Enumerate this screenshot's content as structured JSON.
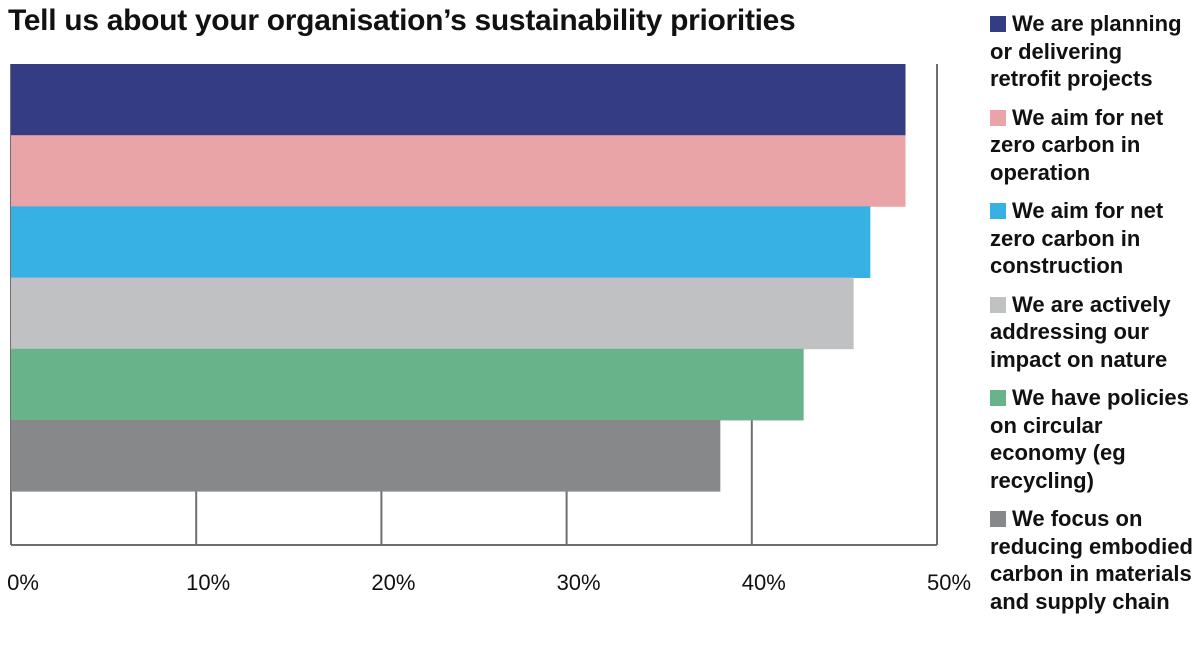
{
  "title": "Tell us about your organisation’s sustainability priorities",
  "chart_data": {
    "type": "bar",
    "orientation": "horizontal",
    "title": "Tell us about your organisation’s sustainability priorities",
    "xlabel": "",
    "ylabel": "",
    "xlim": [
      0,
      50
    ],
    "x_ticks": [
      0,
      10,
      20,
      30,
      40,
      50
    ],
    "x_tick_labels": [
      "0%",
      "10%",
      "20%",
      "30%",
      "40%",
      "50%"
    ],
    "grid": "vertical lines at ticks",
    "legend_position": "right",
    "categories": [
      "We are planning or delivering retrofit projects",
      "We aim for net zero carbon in operation",
      "We aim for net zero carbon in construction",
      "We are actively addressing our impact on nature",
      "We have policies on circular economy (eg recycling)",
      "We focus on reducing embodied carbon in materials and supply chain"
    ],
    "values": [
      48.3,
      48.3,
      46.4,
      45.5,
      42.8,
      38.3
    ],
    "colors": [
      "#343c84",
      "#e8a4a7",
      "#37b0e3",
      "#c0c1c3",
      "#69b38a",
      "#87888a"
    ]
  },
  "legend": [
    {
      "label": "We are planning or delivering retrofit projects",
      "color": "#343c84"
    },
    {
      "label": "We aim for net zero carbon in operation",
      "color": "#e8a4a7"
    },
    {
      "label": "We aim for net zero carbon in construction",
      "color": "#37b0e3"
    },
    {
      "label": "We are actively addressing our impact on nature",
      "color": "#c0c1c3"
    },
    {
      "label": "We have policies on circular economy (eg recycling)",
      "color": "#69b38a"
    },
    {
      "label": "We focus on reducing embodied carbon in materials and supply chain",
      "color": "#87888a"
    }
  ]
}
